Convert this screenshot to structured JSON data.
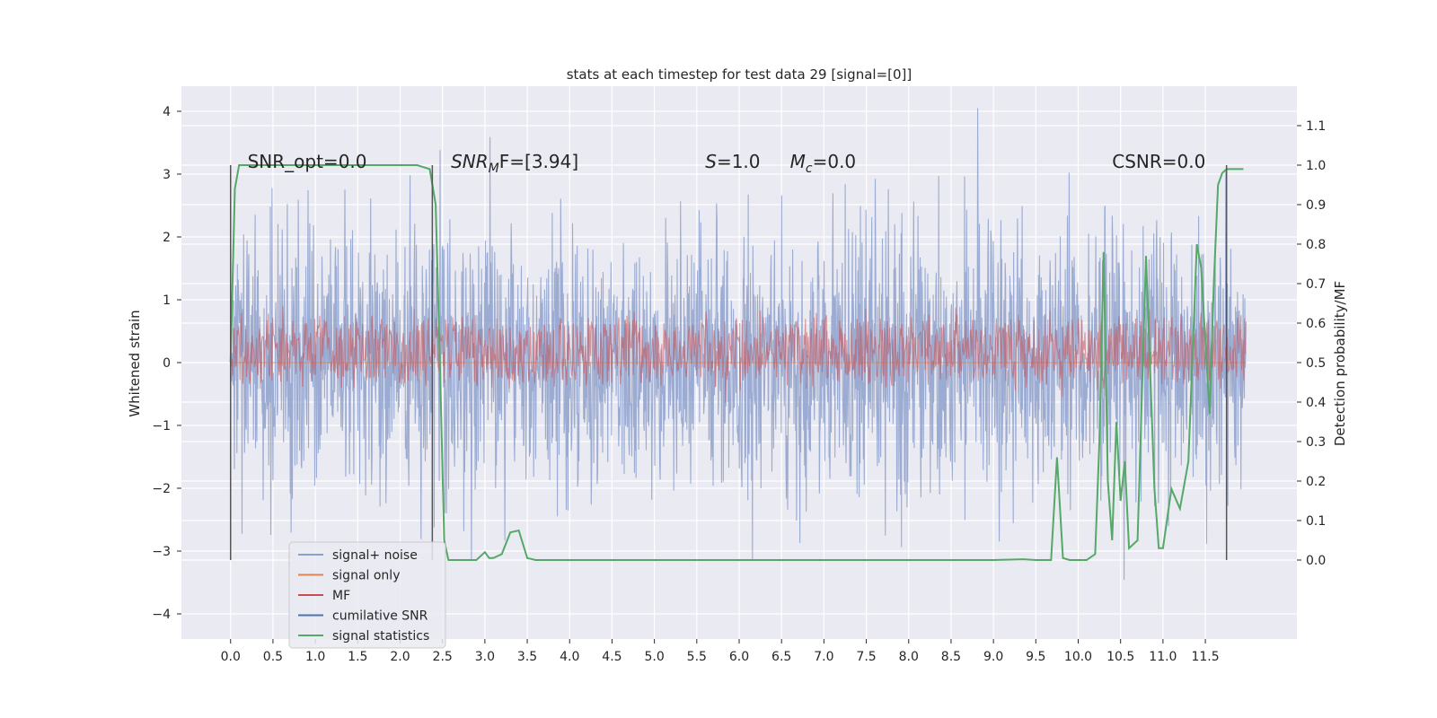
{
  "chart_data": {
    "type": "line",
    "title": "stats at each timestep for test data 29 [signal=[0]]",
    "xlabel": "",
    "ylabel_left": "Whitened strain",
    "ylabel_right": "Detection probability/MF",
    "xlim": [
      -0.58,
      12.58
    ],
    "ylim_left": [
      -4.4,
      4.4
    ],
    "ylim_right": [
      -0.2,
      1.2
    ],
    "x_ticks": [
      "0.0",
      "0.5",
      "1.0",
      "1.5",
      "2.0",
      "2.5",
      "3.0",
      "3.5",
      "4.0",
      "4.5",
      "5.0",
      "5.5",
      "6.0",
      "6.5",
      "7.0",
      "7.5",
      "8.0",
      "8.5",
      "9.0",
      "9.5",
      "10.0",
      "10.5",
      "11.0",
      "11.5"
    ],
    "y_left_ticks": [
      "−4",
      "−3",
      "−2",
      "−1",
      "0",
      "1",
      "2",
      "3",
      "4"
    ],
    "y_right_ticks": [
      "0.0",
      "0.1",
      "0.2",
      "0.3",
      "0.4",
      "0.5",
      "0.6",
      "0.7",
      "0.8",
      "0.9",
      "1.0",
      "1.1"
    ],
    "grid": true,
    "legend_position": "lower-left",
    "annotations": [
      {
        "name": "snr-opt-annotation",
        "text": "SNR_opt=0.0",
        "x": 0.2,
        "y": 3.2
      },
      {
        "name": "snr-mf-annotation",
        "text": "SNR",
        "sub": "M",
        "rest": "F=[3.94]",
        "x": 2.6,
        "y": 3.2
      },
      {
        "name": "s-annotation",
        "text": "S",
        "sub": "",
        "rest": "=1.0",
        "x": 5.6,
        "y": 3.2
      },
      {
        "name": "mc-annotation",
        "text": "M",
        "sub": "c",
        "rest": "=0.0",
        "x": 6.6,
        "y": 3.2
      },
      {
        "name": "csnr-annotation",
        "text": "CSNR=0.0",
        "x": 10.4,
        "y": 3.2
      }
    ],
    "vertical_markers": [
      0.0,
      2.38,
      11.75
    ],
    "series": [
      {
        "name": "signal+ noise",
        "color": "#8da0cb",
        "axis": "left",
        "style": "noise",
        "x_range": [
          0.0,
          11.98
        ],
        "sigma": 1.0,
        "peak_max": 4.05,
        "peak_min": -3.9
      },
      {
        "name": "signal only",
        "color": "#dd8452",
        "axis": "left",
        "values_const": 0.0
      },
      {
        "name": "MF",
        "color": "#c44e52",
        "axis": "right",
        "style": "mf-band",
        "center": 0.53,
        "spread": 0.08
      },
      {
        "name": "cumilative SNR",
        "color": "#4c72b0",
        "axis": "right",
        "values_const": null
      },
      {
        "name": "signal statistics",
        "color": "#55a868",
        "axis": "right",
        "x": [
          0.0,
          0.05,
          0.1,
          0.5,
          1.0,
          1.5,
          2.0,
          2.2,
          2.35,
          2.42,
          2.47,
          2.52,
          2.57,
          2.62,
          2.7,
          2.8,
          2.9,
          3.0,
          3.05,
          3.1,
          3.2,
          3.3,
          3.4,
          3.5,
          3.6,
          3.7,
          4.0,
          5.0,
          6.0,
          7.0,
          7.3,
          7.5,
          8.0,
          8.5,
          9.0,
          9.35,
          9.5,
          9.68,
          9.75,
          9.82,
          9.9,
          10.0,
          10.1,
          10.2,
          10.25,
          10.3,
          10.35,
          10.4,
          10.45,
          10.5,
          10.55,
          10.6,
          10.7,
          10.8,
          10.9,
          10.95,
          11.0,
          11.1,
          11.2,
          11.3,
          11.4,
          11.45,
          11.55,
          11.6,
          11.65,
          11.7,
          11.75,
          11.8,
          11.85,
          11.9,
          11.95
        ],
        "values": [
          0.5,
          0.94,
          1.0,
          1.0,
          1.0,
          1.0,
          1.0,
          1.0,
          0.99,
          0.9,
          0.5,
          0.05,
          0.0,
          0.0,
          0.0,
          0.0,
          0.0,
          0.02,
          0.005,
          0.005,
          0.015,
          0.07,
          0.075,
          0.005,
          0.0,
          0.0,
          0.0,
          0.0,
          0.0,
          0.0,
          0.0,
          0.0,
          0.0,
          0.0,
          0.0,
          0.002,
          0.0,
          0.0,
          0.26,
          0.005,
          0.0,
          0.0,
          0.0,
          0.015,
          0.3,
          0.78,
          0.2,
          0.05,
          0.35,
          0.15,
          0.25,
          0.03,
          0.05,
          0.77,
          0.18,
          0.03,
          0.03,
          0.18,
          0.13,
          0.25,
          0.8,
          0.74,
          0.37,
          0.7,
          0.95,
          0.98,
          0.99,
          0.99,
          0.99,
          0.99,
          0.99
        ]
      }
    ]
  }
}
